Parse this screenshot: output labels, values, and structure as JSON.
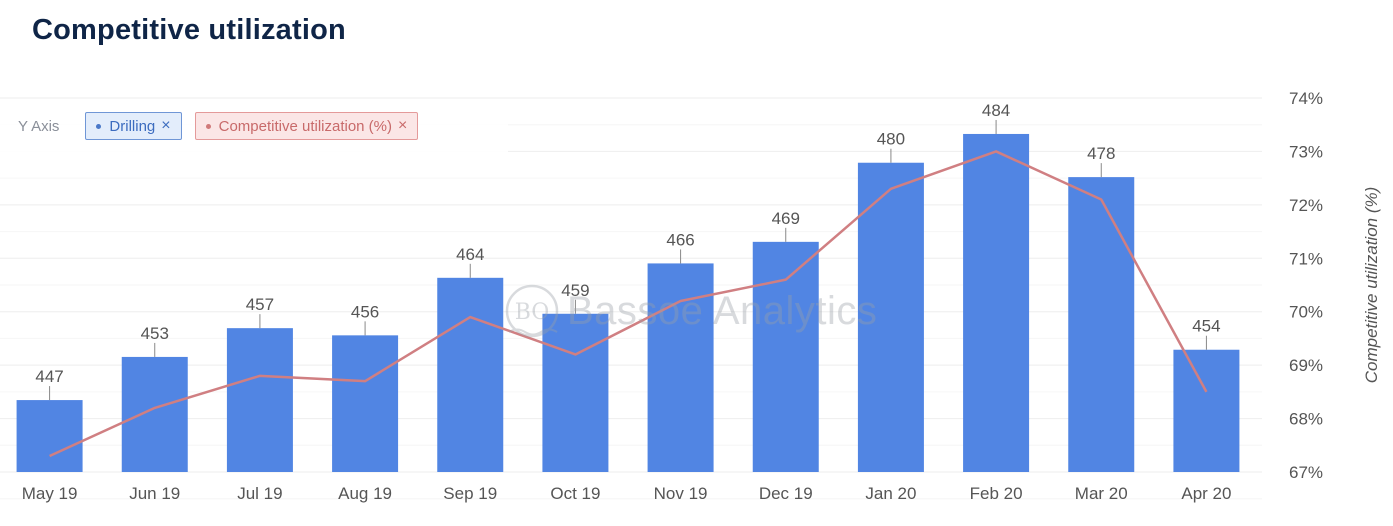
{
  "title": "Competitive utilization",
  "legend": {
    "label": "Y Axis",
    "items": [
      {
        "name": "Drilling",
        "close": "×"
      },
      {
        "name": "Competitive utilization (%)",
        "close": "×"
      }
    ]
  },
  "watermark": {
    "mark": "BO",
    "text": "Bassoe Analytics"
  },
  "colors": {
    "bar": "#5185e3",
    "line": "#d07f82",
    "title": "#0f2547",
    "grid": "#eeeeee"
  },
  "chart_data": {
    "type": "bar",
    "title": "Competitive utilization",
    "categories": [
      "May 19",
      "Jun 19",
      "Jul 19",
      "Aug 19",
      "Sep 19",
      "Oct 19",
      "Nov 19",
      "Dec 19",
      "Jan 20",
      "Feb 20",
      "Mar 20",
      "Apr 20"
    ],
    "series": [
      {
        "name": "Drilling",
        "type": "bar",
        "axis": "left",
        "values": [
          447,
          453,
          457,
          456,
          464,
          459,
          466,
          469,
          480,
          484,
          478,
          454
        ]
      },
      {
        "name": "Competitive utilization (%)",
        "type": "line",
        "axis": "right",
        "values": [
          67.3,
          68.2,
          68.8,
          68.7,
          69.9,
          69.2,
          70.2,
          70.6,
          72.3,
          73.0,
          72.1,
          68.5
        ]
      }
    ],
    "left_axis": {
      "ylim": [
        437,
        489
      ]
    },
    "right_axis": {
      "label": "Competitive utilization (%)",
      "ylim": [
        67,
        74
      ],
      "ticks": [
        "67%",
        "68%",
        "69%",
        "70%",
        "71%",
        "72%",
        "73%",
        "74%"
      ]
    },
    "grid": true
  }
}
